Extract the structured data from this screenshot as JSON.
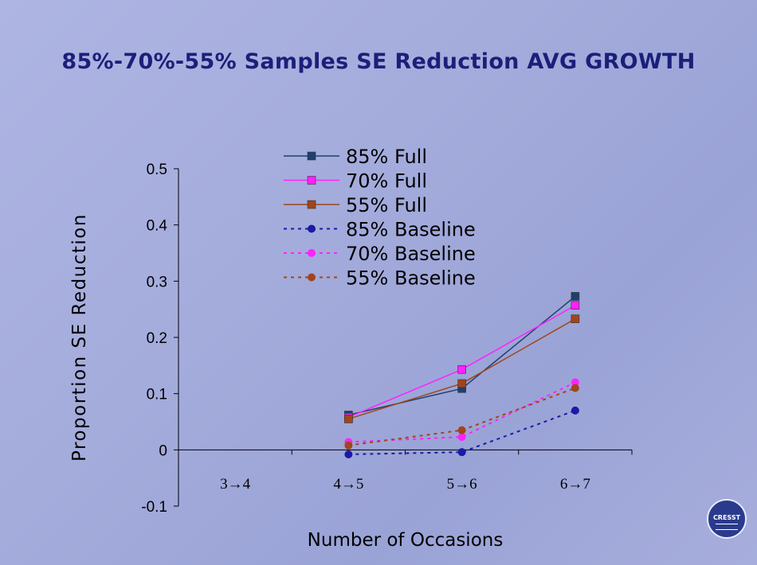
{
  "slide": {
    "title": "85%-70%-55% Samples SE Reduction AVG GROWTH",
    "logo_text": "CRESST"
  },
  "chart_data": {
    "type": "line",
    "title": "",
    "xlabel": "Number of Occasions",
    "ylabel": "Proportion SE Reduction",
    "categories": [
      "3→4",
      "4→5",
      "5→6",
      "6→7"
    ],
    "ylim": [
      -0.1,
      0.5
    ],
    "yticks": [
      -0.1,
      0,
      0.1,
      0.2,
      0.3,
      0.4,
      0.5
    ],
    "ytick_labels": [
      "-0.1",
      "0",
      "0.1",
      "0.2",
      "0.3",
      "0.4",
      "0.5"
    ],
    "grid": false,
    "legend_position": "top-center",
    "series": [
      {
        "name": "85% Full",
        "values": [
          null,
          0.062,
          0.109,
          0.273
        ],
        "color": "#1f3f6e",
        "marker": "square",
        "dash": "solid"
      },
      {
        "name": "70% Full",
        "values": [
          null,
          0.058,
          0.143,
          0.257
        ],
        "color": "#ff22ff",
        "marker": "square",
        "dash": "solid"
      },
      {
        "name": "55% Full",
        "values": [
          null,
          0.055,
          0.118,
          0.233
        ],
        "color": "#a0461a",
        "marker": "square",
        "dash": "solid"
      },
      {
        "name": "85% Baseline",
        "values": [
          null,
          -0.008,
          -0.004,
          0.07
        ],
        "color": "#1a1aa8",
        "marker": "circle",
        "dash": "dotted"
      },
      {
        "name": "70% Baseline",
        "values": [
          null,
          0.014,
          0.023,
          0.12
        ],
        "color": "#ff22ff",
        "marker": "circle",
        "dash": "dotted"
      },
      {
        "name": "55% Baseline",
        "values": [
          null,
          0.008,
          0.035,
          0.11
        ],
        "color": "#a0461a",
        "marker": "circle",
        "dash": "dotted"
      }
    ]
  }
}
